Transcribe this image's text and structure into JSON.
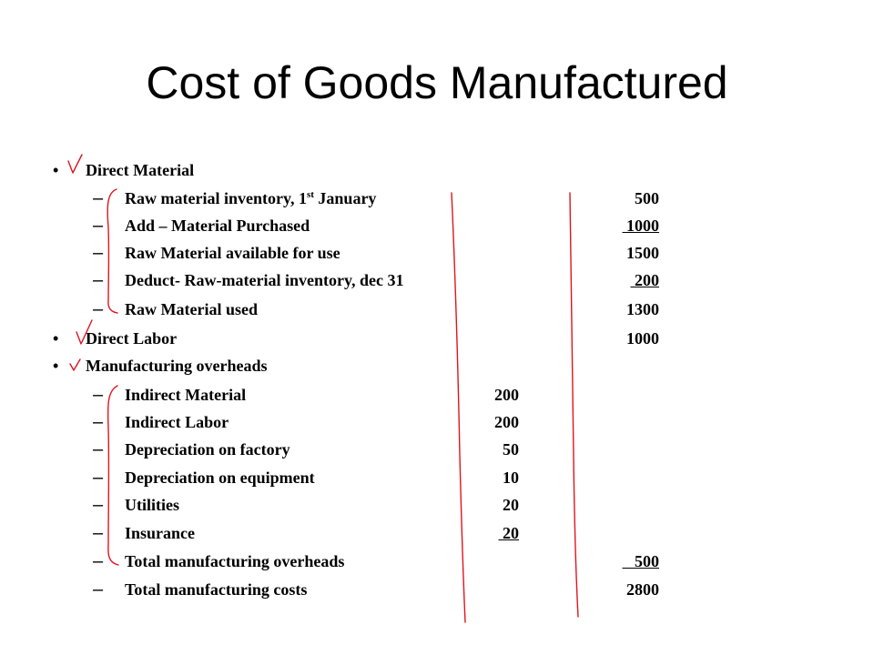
{
  "title": "Cost of Goods Manufactured",
  "bullet_glyph": "•",
  "dash_glyph": "–",
  "sections": [
    {
      "id": "dm",
      "label": "Direct Material"
    },
    {
      "id": "dl",
      "label": "Direct Labor",
      "value": "1000"
    },
    {
      "id": "mo",
      "label": "Manufacturing overheads"
    }
  ],
  "dm_rows": [
    {
      "label_pre": "Raw material inventory, 1",
      "label_sup": "st",
      "label_post": " January",
      "value": "500"
    },
    {
      "label": "Add – Material Purchased",
      "value": " 1000"
    },
    {
      "label": "Raw Material available for use",
      "value": "1500"
    },
    {
      "label": "Deduct- Raw-material inventory, dec 31",
      "value": " 200"
    },
    {
      "label": "Raw Material used",
      "value": "1300"
    }
  ],
  "mo_rows": [
    {
      "label": "Indirect Material",
      "value": "200"
    },
    {
      "label": "Indirect Labor",
      "value": "200"
    },
    {
      "label": "Depreciation on factory",
      "value": "50"
    },
    {
      "label": "Depreciation on equipment",
      "value": "10"
    },
    {
      "label": "Utilities",
      "value": "20"
    },
    {
      "label": "Insurance",
      "value": " 20"
    }
  ],
  "total_rows": [
    {
      "label": "Total manufacturing overheads",
      "value": "   500"
    },
    {
      "label": "Total manufacturing costs",
      "value": "2800"
    }
  ],
  "annotation_color": "#e0141e"
}
